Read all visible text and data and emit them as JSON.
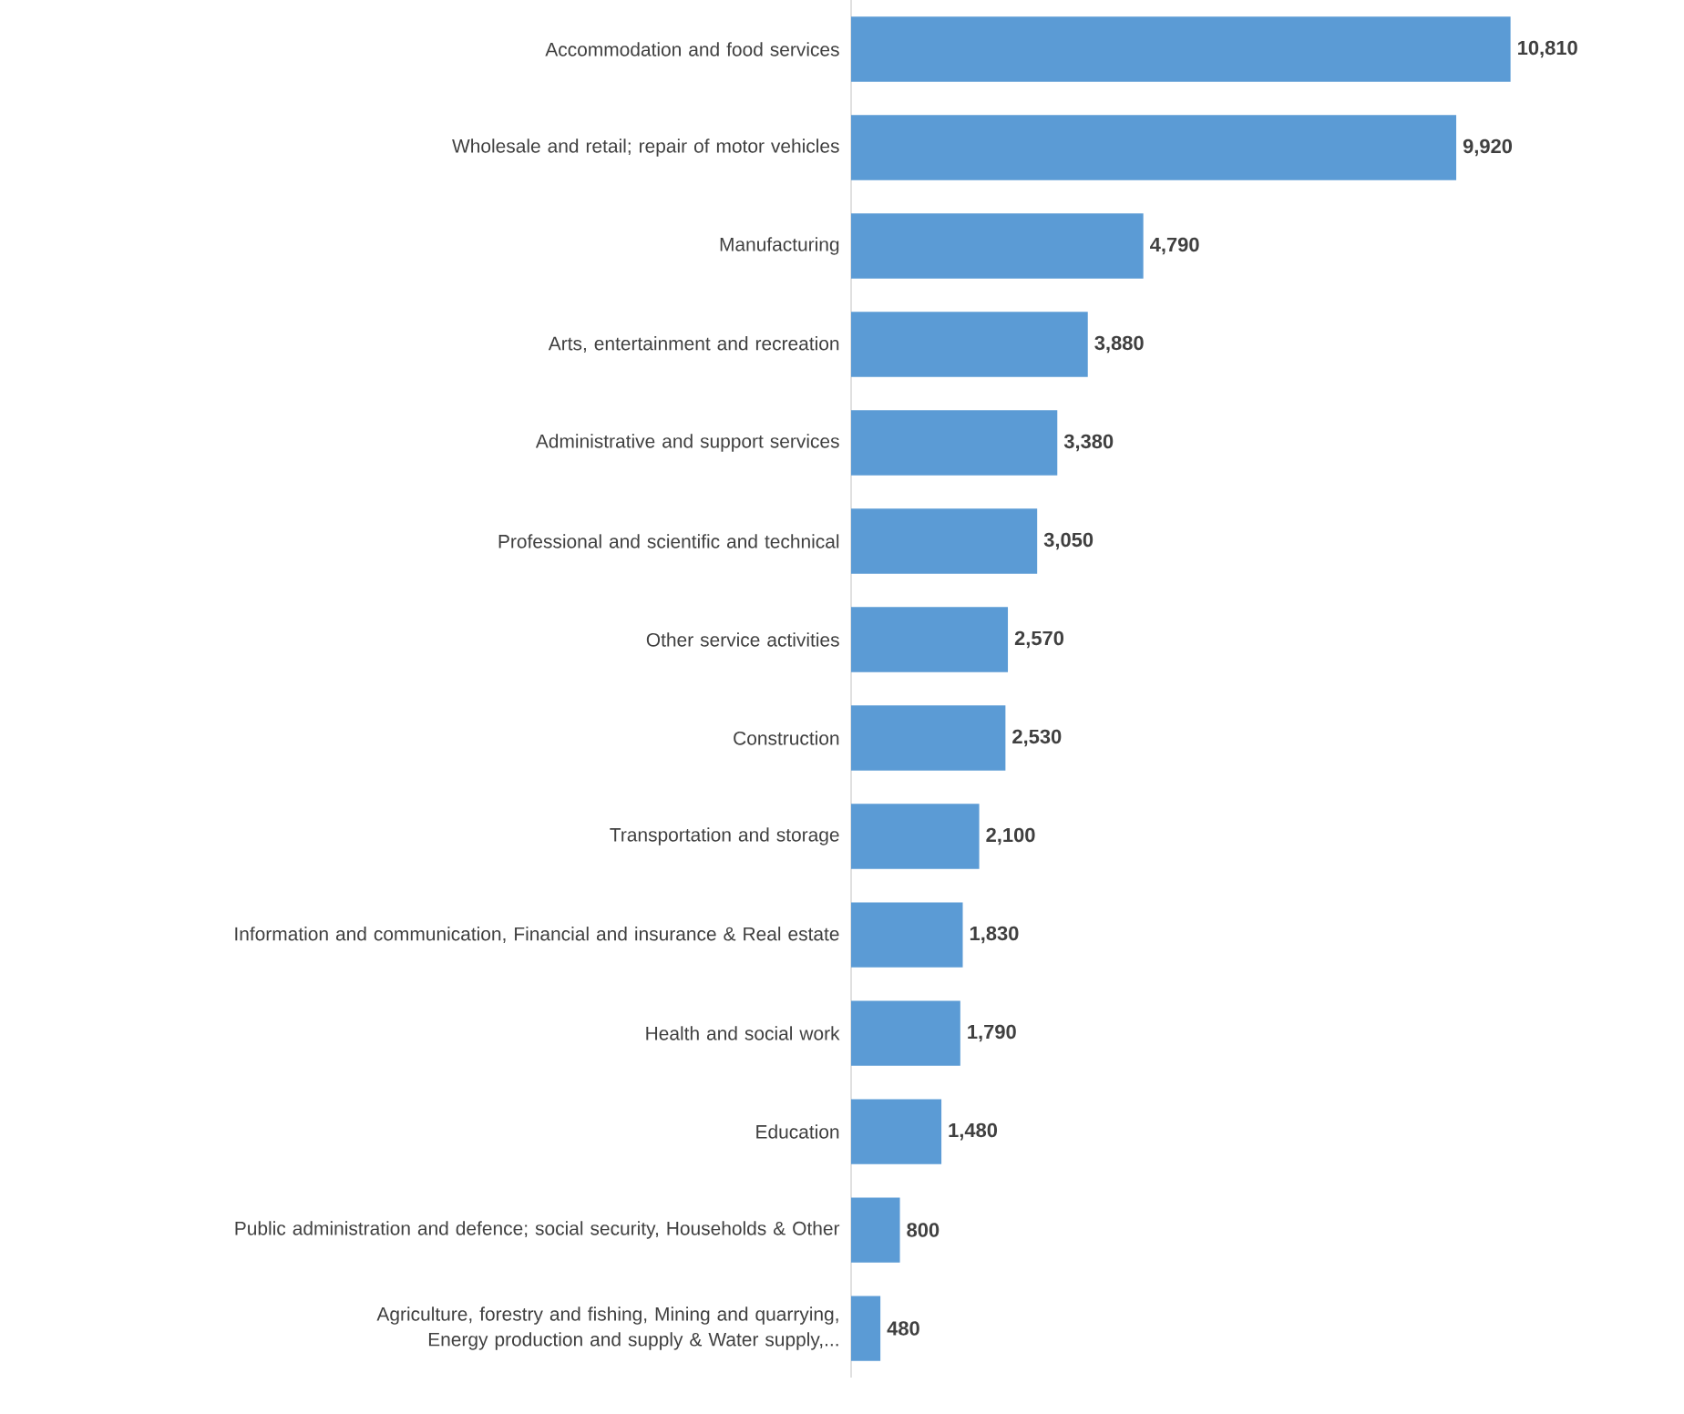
{
  "chart_data": {
    "type": "bar",
    "orientation": "horizontal",
    "tick_labels": "y",
    "color": "#5b9bd5",
    "categories": [
      "Accommodation and food services",
      "Wholesale and retail; repair of motor vehicles",
      "Manufacturing",
      "Arts, entertainment and recreation",
      "Administrative and support services",
      "Professional and scientific and technical",
      "Other service activities",
      "Construction",
      "Transportation and storage",
      "Information and communication, Financial and insurance & Real estate",
      "Health and social work",
      "Education",
      "Public administration and defence; social security, Households & Other",
      "Agriculture, forestry and fishing, Mining and quarrying, Energy production and supply & Water supply,..."
    ],
    "values": [
      10810,
      9920,
      4790,
      3880,
      3380,
      3050,
      2570,
      2530,
      2100,
      1830,
      1790,
      1480,
      800,
      480
    ],
    "value_labels": [
      "10,810",
      "9,920",
      "4,790",
      "3,880",
      "3,380",
      "3,050",
      "2,570",
      "2,530",
      "2,100",
      "1,830",
      "1,790",
      "1,480",
      "800",
      "480"
    ]
  }
}
